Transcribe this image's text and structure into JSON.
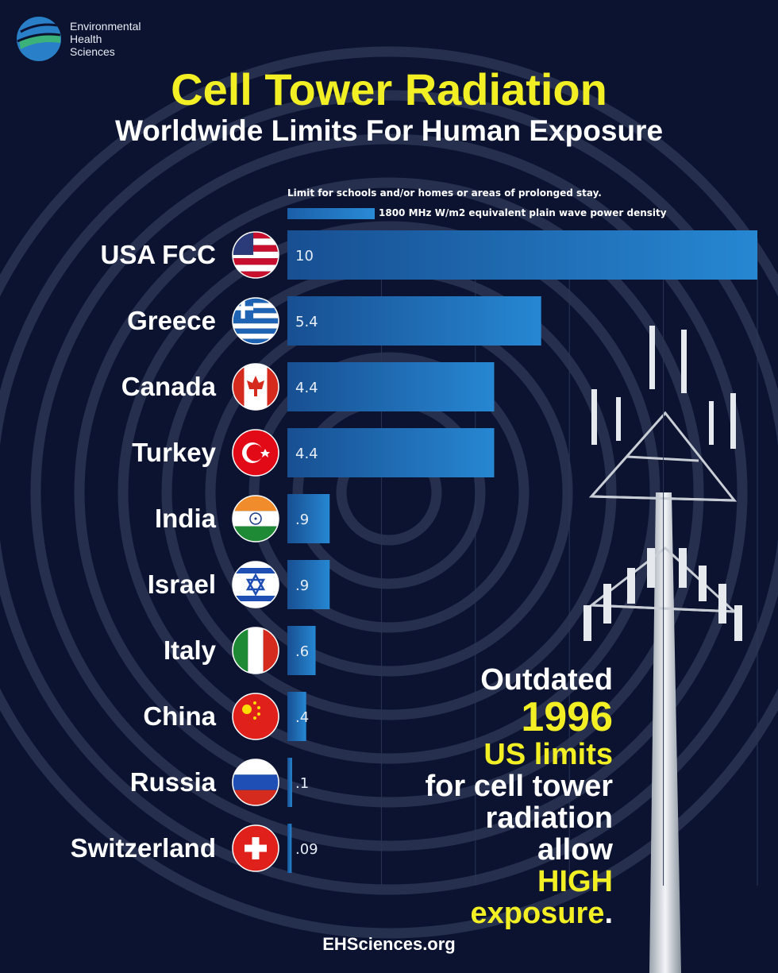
{
  "brand": {
    "logo_lines": [
      "Environmental",
      "Health",
      "Sciences"
    ]
  },
  "title": "Cell Tower Radiation",
  "subtitle": "Worldwide Limits For Human Exposure",
  "notes": {
    "scope": "Limit for schools and/or homes or areas of prolonged stay.",
    "legend": "1800 MHz W/m2 equivalent plain wave power density"
  },
  "colors": {
    "accent_yellow": "#f2ef24",
    "bar": "#1f74c0",
    "background": "#0b1330"
  },
  "chart_data": {
    "type": "bar",
    "orientation": "horizontal",
    "categories": [
      "USA FCC",
      "Greece",
      "Canada",
      "Turkey",
      "India",
      "Israel",
      "Italy",
      "China",
      "Russia",
      "Switzerland"
    ],
    "values": [
      10,
      5.4,
      4.4,
      4.4,
      0.9,
      0.9,
      0.6,
      0.4,
      0.1,
      0.09
    ],
    "value_labels": [
      "10",
      "5.4",
      "4.4",
      "4.4",
      ".9",
      ".9",
      ".6",
      ".4",
      ".1",
      ".09"
    ],
    "flags": [
      "usa-flag-icon",
      "greece-flag-icon",
      "canada-flag-icon",
      "turkey-flag-icon",
      "india-flag-icon",
      "israel-flag-icon",
      "italy-flag-icon",
      "china-flag-icon",
      "russia-flag-icon",
      "switzerland-flag-icon"
    ],
    "xlim": [
      0,
      10
    ],
    "grid": true,
    "legend_position": "top"
  },
  "callout": {
    "line1": "Outdated",
    "year": "1996",
    "line3": "US limits",
    "line4": "for cell tower",
    "line5": "radiation",
    "line6": "allow",
    "line7": "HIGH",
    "line8": "exposure",
    "period": "."
  },
  "footer": "EHSciences.org"
}
